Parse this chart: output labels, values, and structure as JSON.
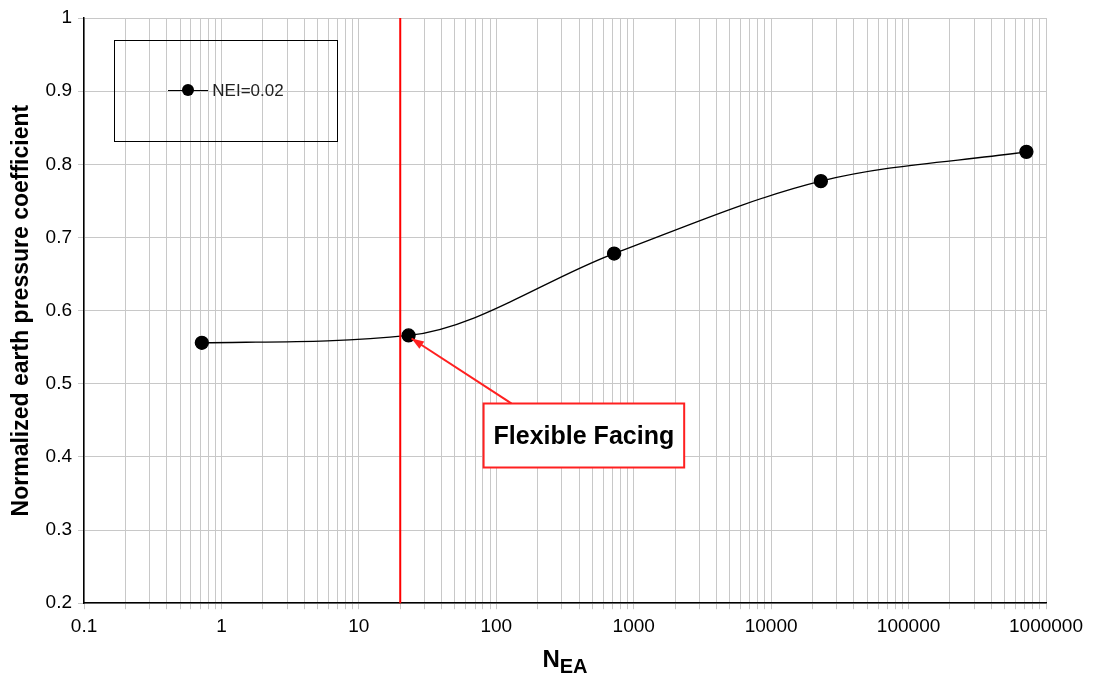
{
  "chart_data": {
    "type": "line",
    "xlabel": "N$_{EA}$",
    "ylabel": "Normalized earth pressure coefficient",
    "x": [
      0.72,
      23,
      720,
      23000,
      720000
    ],
    "series": [
      {
        "name": "NEI=0.02",
        "color": "#000000",
        "values": [
          0.556,
          0.566,
          0.678,
          0.777,
          0.817
        ]
      }
    ],
    "log": "x",
    "xlim": [
      0.1,
      1000000
    ],
    "xticks": [
      0.1,
      {
        "value": 0.2,
        "label": null
      },
      {
        "value": 0.3,
        "label": null
      },
      {
        "value": 0.4,
        "label": null
      },
      {
        "value": 0.5,
        "label": null
      },
      {
        "value": 0.6,
        "label": null
      },
      {
        "value": 0.7,
        "label": null
      },
      {
        "value": 0.8,
        "label": null
      },
      {
        "value": 0.9,
        "label": null
      },
      1,
      {
        "value": 2,
        "label": null
      },
      {
        "value": 3,
        "label": null
      },
      {
        "value": 4,
        "label": null
      },
      {
        "value": 5,
        "label": null
      },
      {
        "value": 6,
        "label": null
      },
      {
        "value": 7,
        "label": null
      },
      {
        "value": 8,
        "label": null
      },
      {
        "value": 9,
        "label": null
      },
      10,
      {
        "value": 20,
        "label": null
      },
      {
        "value": 30,
        "label": null
      },
      {
        "value": 40,
        "label": null
      },
      {
        "value": 50,
        "label": null
      },
      {
        "value": 60,
        "label": null
      },
      {
        "value": 70,
        "label": null
      },
      {
        "value": 80,
        "label": null
      },
      {
        "value": 90,
        "label": null
      },
      100,
      {
        "value": 200,
        "label": null
      },
      {
        "value": 300,
        "label": null
      },
      {
        "value": 400,
        "label": null
      },
      {
        "value": 500,
        "label": null
      },
      {
        "value": 600,
        "label": null
      },
      {
        "value": 700,
        "label": null
      },
      {
        "value": 800,
        "label": null
      },
      {
        "value": 900,
        "label": null
      },
      1000,
      {
        "value": 2000,
        "label": null
      },
      {
        "value": 3000,
        "label": null
      },
      {
        "value": 4000,
        "label": null
      },
      {
        "value": 5000,
        "label": null
      },
      {
        "value": 6000,
        "label": null
      },
      {
        "value": 7000,
        "label": null
      },
      {
        "value": 8000,
        "label": null
      },
      {
        "value": 9000,
        "label": null
      },
      10000,
      {
        "value": 20000,
        "label": null
      },
      {
        "value": 30000,
        "label": null
      },
      {
        "value": 40000,
        "label": null
      },
      {
        "value": 50000,
        "label": null
      },
      {
        "value": 60000,
        "label": null
      },
      {
        "value": 70000,
        "label": null
      },
      {
        "value": 80000,
        "label": null
      },
      {
        "value": 90000,
        "label": null
      },
      100000,
      {
        "value": 200000,
        "label": null
      },
      {
        "value": 300000,
        "label": null
      },
      {
        "value": 400000,
        "label": null
      },
      {
        "value": 500000,
        "label": null
      },
      {
        "value": 600000,
        "label": null
      },
      {
        "value": 700000,
        "label": null
      },
      {
        "value": 800000,
        "label": null
      },
      {
        "value": 900000,
        "label": null
      },
      1000000
    ],
    "ylim": [
      0.2,
      1
    ],
    "yticks": [
      0.2,
      0.3,
      0.4,
      0.5,
      0.6,
      0.7,
      0.8,
      0.9,
      1
    ],
    "grid": true,
    "legend": "top left",
    "marker": "circle",
    "line_style": "solid",
    "ref_lines": [
      {
        "axis": "x",
        "value": 20,
        "color": "#ff0000"
      }
    ],
    "annotations": [
      {
        "text": "Flexible Facing",
        "x": 23,
        "y": 0.566
      }
    ]
  }
}
